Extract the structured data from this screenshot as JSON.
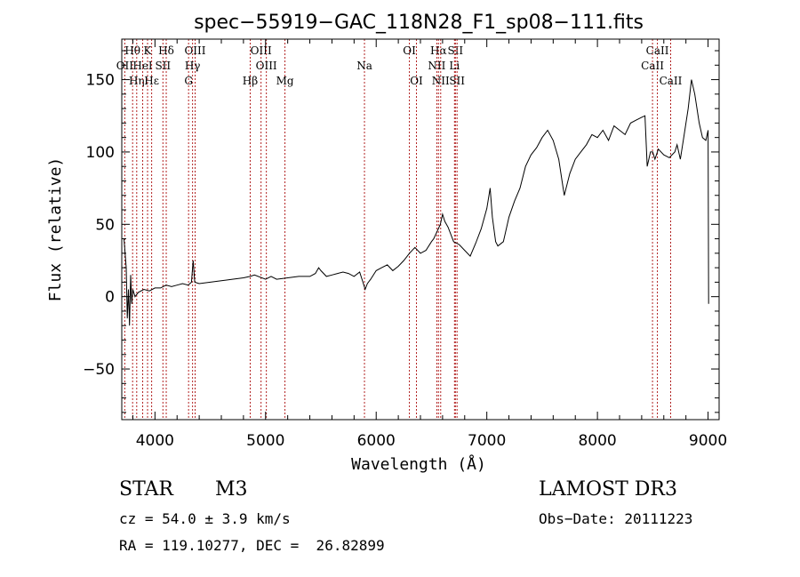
{
  "chart_data": {
    "type": "line",
    "title": "spec−55919−GAC_118N28_F1_sp08−111.fits",
    "xlabel": "Wavelength (Å)",
    "ylabel": "Flux (relative)",
    "xlim": [
      3700,
      9100
    ],
    "ylim": [
      -85,
      178
    ],
    "x_ticks": [
      4000,
      5000,
      6000,
      7000,
      8000,
      9000
    ],
    "y_ticks": [
      -50,
      0,
      50,
      100,
      150
    ],
    "y_tick_labels": [
      "−50",
      "0",
      "50",
      "100",
      "150"
    ],
    "series": [
      {
        "name": "flux",
        "x": [
          3720,
          3740,
          3750,
          3760,
          3770,
          3780,
          3790,
          3800,
          3820,
          3850,
          3900,
          3950,
          4000,
          4050,
          4100,
          4150,
          4200,
          4250,
          4300,
          4330,
          4345,
          4360,
          4400,
          4500,
          4600,
          4700,
          4800,
          4860,
          4900,
          5000,
          5050,
          5100,
          5200,
          5300,
          5400,
          5450,
          5480,
          5500,
          5550,
          5600,
          5650,
          5700,
          5750,
          5800,
          5850,
          5880,
          5900,
          5920,
          5950,
          6000,
          6050,
          6100,
          6150,
          6200,
          6250,
          6300,
          6350,
          6400,
          6450,
          6500,
          6520,
          6550,
          6580,
          6600,
          6620,
          6650,
          6700,
          6750,
          6800,
          6850,
          6900,
          6950,
          7000,
          7030,
          7050,
          7080,
          7100,
          7150,
          7200,
          7250,
          7300,
          7350,
          7400,
          7450,
          7500,
          7550,
          7600,
          7650,
          7680,
          7700,
          7750,
          7800,
          7850,
          7900,
          7950,
          8000,
          8050,
          8100,
          8150,
          8200,
          8250,
          8300,
          8350,
          8400,
          8430,
          8450,
          8480,
          8500,
          8520,
          8550,
          8600,
          8650,
          8700,
          8720,
          8750,
          8780,
          8800,
          8820,
          8850,
          8880,
          8900,
          8920,
          8950,
          8980,
          9000,
          9005
        ],
        "y": [
          40,
          20,
          -15,
          5,
          -20,
          15,
          -5,
          5,
          0,
          3,
          5,
          4,
          6,
          6,
          8,
          7,
          8,
          9,
          8,
          10,
          25,
          10,
          9,
          10,
          11,
          12,
          13,
          14,
          15,
          12,
          14,
          12,
          13,
          14,
          14,
          16,
          20,
          18,
          14,
          15,
          16,
          17,
          16,
          14,
          17,
          10,
          5,
          9,
          12,
          18,
          20,
          22,
          18,
          21,
          25,
          30,
          34,
          30,
          32,
          38,
          40,
          45,
          50,
          57,
          52,
          48,
          38,
          36,
          32,
          28,
          37,
          47,
          61,
          75,
          55,
          38,
          35,
          38,
          55,
          66,
          75,
          90,
          98,
          103,
          110,
          115,
          108,
          95,
          80,
          70,
          85,
          95,
          100,
          105,
          112,
          110,
          115,
          108,
          118,
          115,
          112,
          120,
          122,
          124,
          125,
          90,
          100,
          100,
          95,
          102,
          98,
          96,
          100,
          105,
          95,
          110,
          120,
          130,
          150,
          140,
          130,
          120,
          110,
          108,
          115,
          -5
        ]
      }
    ],
    "emission_lines": [
      {
        "label": "Hθ",
        "wavelength": 3798,
        "row": 0
      },
      {
        "label": "OII",
        "wavelength": 3727,
        "row": 1
      },
      {
        "label": "Hη",
        "wavelength": 3835,
        "row": 2
      },
      {
        "label": "K",
        "wavelength": 3933,
        "row": 0
      },
      {
        "label": "HeI",
        "wavelength": 3889,
        "row": 1
      },
      {
        "label": "Hε",
        "wavelength": 3970,
        "row": 2
      },
      {
        "label": "SII",
        "wavelength": 4072,
        "row": 1
      },
      {
        "label": "Hδ",
        "wavelength": 4102,
        "row": 0
      },
      {
        "label": "OIII",
        "wavelength": 4363,
        "row": 0
      },
      {
        "label": "Hγ",
        "wavelength": 4340,
        "row": 1
      },
      {
        "label": "G",
        "wavelength": 4304,
        "row": 2
      },
      {
        "label": "OIII",
        "wavelength": 4959,
        "row": 0
      },
      {
        "label": "OIII",
        "wavelength": 5007,
        "row": 1
      },
      {
        "label": "Hβ",
        "wavelength": 4861,
        "row": 2
      },
      {
        "label": "Mg",
        "wavelength": 5175,
        "row": 2
      },
      {
        "label": "Na",
        "wavelength": 5894,
        "row": 1
      },
      {
        "label": "OI",
        "wavelength": 6300,
        "row": 0
      },
      {
        "label": "OI",
        "wavelength": 6364,
        "row": 2
      },
      {
        "label": "Hα",
        "wavelength": 6563,
        "row": 0
      },
      {
        "label": "NII",
        "wavelength": 6548,
        "row": 1
      },
      {
        "label": "NII",
        "wavelength": 6583,
        "row": 2
      },
      {
        "label": "SII",
        "wavelength": 6716,
        "row": 0
      },
      {
        "label": "Li",
        "wavelength": 6708,
        "row": 1
      },
      {
        "label": "SII",
        "wavelength": 6731,
        "row": 2
      },
      {
        "label": "CaII",
        "wavelength": 8542,
        "row": 0
      },
      {
        "label": "CaII",
        "wavelength": 8498,
        "row": 1
      },
      {
        "label": "CaII",
        "wavelength": 8662,
        "row": 2
      }
    ]
  },
  "info": {
    "object_class": "STAR",
    "subclass": "M3",
    "survey": "LAMOST DR3",
    "redshift_text": "cz = 54.0 ± 3.9 km/s",
    "obs_date_text": "Obs−Date: 20111223",
    "coords_text": "RA = 119.10277, DEC =  26.82899"
  }
}
